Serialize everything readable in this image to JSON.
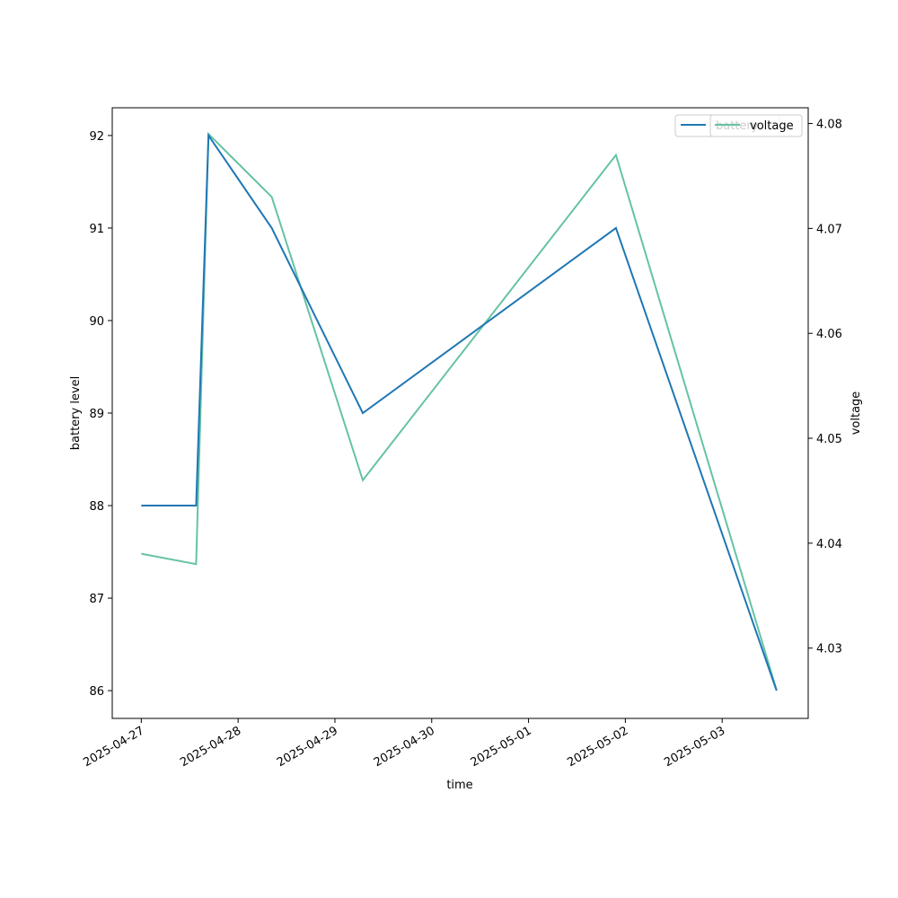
{
  "chart_data": {
    "type": "line",
    "xlabel": "time",
    "ylabel": "battery level",
    "ylabel_right": "voltage",
    "x_ticks": [
      "2025-04-27",
      "2025-04-28",
      "2025-04-29",
      "2025-04-30",
      "2025-05-01",
      "2025-05-02",
      "2025-05-03"
    ],
    "y_ticks": [
      86,
      87,
      88,
      89,
      90,
      91,
      92
    ],
    "y_ticks_right": [
      4.03,
      4.04,
      4.05,
      4.06,
      4.07,
      4.08
    ],
    "xlim": [
      "2025-04-26T16:48",
      "2025-05-03T21:20"
    ],
    "ylim": [
      85.7,
      92.3
    ],
    "ylim_right": [
      4.0233,
      4.0815
    ],
    "grid": false,
    "legend_position": "top-right",
    "series": [
      {
        "name": "battery",
        "axis": "left",
        "color": "#1f77b4",
        "x": [
          "2025-04-27T00:00",
          "2025-04-27T13:35",
          "2025-04-27T16:40",
          "2025-04-28T08:20",
          "2025-04-29T06:55",
          "2025-05-01T21:40",
          "2025-05-03T13:30"
        ],
        "values": [
          88,
          88,
          92,
          91,
          89,
          91,
          86
        ]
      },
      {
        "name": "voltage",
        "axis": "right",
        "color": "#66c2a5",
        "x": [
          "2025-04-27T00:00",
          "2025-04-27T13:35",
          "2025-04-27T16:40",
          "2025-04-28T08:20",
          "2025-04-29T06:55",
          "2025-05-01T21:40",
          "2025-05-03T13:30"
        ],
        "values": [
          4.039,
          4.038,
          4.079,
          4.073,
          4.046,
          4.077,
          4.026
        ]
      }
    ]
  }
}
